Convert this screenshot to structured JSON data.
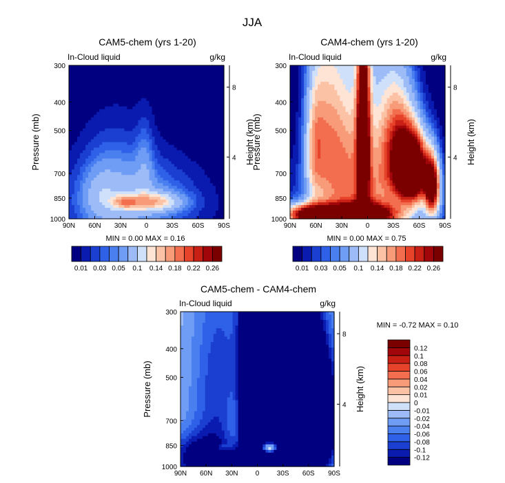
{
  "figure_title": "JJA",
  "chart_data": [
    {
      "type": "heatmap",
      "title": "CAM5-chem (yrs 1-20)",
      "left_label": "In-Cloud liquid",
      "units": "g/kg",
      "ylabel": "Pressure (mb)",
      "ylabel_right": "Height (km)",
      "x_ticks": [
        "90N",
        "60N",
        "30N",
        "0",
        "30S",
        "60S",
        "90S"
      ],
      "x_range": [
        90,
        -90
      ],
      "y_ticks": [
        "300",
        "400",
        "500",
        "700",
        "850",
        "1000"
      ],
      "y_tick_values": [
        300,
        400,
        500,
        700,
        850,
        1000
      ],
      "y_range": [
        300,
        1000
      ],
      "height_ticks": [
        "8",
        "4"
      ],
      "height_tick_pressures": [
        356,
        616
      ],
      "stats": {
        "min_label": "MIN =",
        "min_value": "0.00",
        "max_label": "MAX =",
        "max_value": "0.16"
      },
      "colorbar": {
        "orientation": "horizontal",
        "levels": [
          0.01,
          0.02,
          0.03,
          0.04,
          0.05,
          0.07,
          0.1,
          0.12,
          0.14,
          0.16,
          0.18,
          0.2,
          0.22,
          0.24,
          0.26
        ],
        "labels": [
          "0.01",
          "0.03",
          "0.05",
          "0.1",
          "0.14",
          "0.18",
          "0.22",
          "0.26"
        ],
        "colors": [
          "#000080",
          "#0a1bb0",
          "#1b3fd0",
          "#2e60e8",
          "#4a7ff0",
          "#6f9cf4",
          "#9dbcf7",
          "#cfe0fb",
          "#fde4d4",
          "#fbc2a5",
          "#f79b79",
          "#f26e4e",
          "#e6432a",
          "#c82014",
          "#a0060a",
          "#7a0000"
        ]
      },
      "field_description": "low-level liquid peak near equator/20S at 850 mb",
      "blobs": [
        {
          "lat": 12,
          "p": 880,
          "sx": 50,
          "sp": 180,
          "a": 0.06
        },
        {
          "lat": 38,
          "p": 800,
          "sx": 28,
          "sp": 220,
          "a": 0.04
        },
        {
          "lat": -10,
          "p": 875,
          "sx": 22,
          "sp": 45,
          "a": 0.1
        },
        {
          "lat": 25,
          "p": 878,
          "sx": 10,
          "sp": 30,
          "a": 0.08
        },
        {
          "lat": 2,
          "p": 640,
          "sx": 7,
          "sp": 140,
          "a": 0.03
        },
        {
          "lat": 55,
          "p": 820,
          "sx": 12,
          "sp": 120,
          "a": 0.025
        }
      ]
    },
    {
      "type": "heatmap",
      "title": "CAM4-chem (yrs 1-20)",
      "left_label": "In-Cloud liquid",
      "units": "g/kg",
      "ylabel": "Pressure (mb)",
      "ylabel_right": "Height (km)",
      "x_ticks": [
        "90N",
        "60N",
        "30N",
        "0",
        "30S",
        "60S",
        "90S"
      ],
      "x_range": [
        90,
        -90
      ],
      "y_ticks": [
        "300",
        "400",
        "500",
        "700",
        "850",
        "1000"
      ],
      "y_tick_values": [
        300,
        400,
        500,
        700,
        850,
        1000
      ],
      "y_range": [
        300,
        1000
      ],
      "height_ticks": [
        "8",
        "4"
      ],
      "height_tick_pressures": [
        356,
        616
      ],
      "stats": {
        "min_label": "MIN =",
        "min_value": "0.00",
        "max_label": "MAX =",
        "max_value": "0.75"
      },
      "colorbar": {
        "orientation": "horizontal",
        "levels": [
          0.01,
          0.02,
          0.03,
          0.04,
          0.05,
          0.07,
          0.1,
          0.12,
          0.14,
          0.16,
          0.18,
          0.2,
          0.22,
          0.24,
          0.26
        ],
        "labels": [
          "0.01",
          "0.03",
          "0.05",
          "0.1",
          "0.14",
          "0.18",
          "0.22",
          "0.26"
        ],
        "colors": [
          "#000080",
          "#0a1bb0",
          "#1b3fd0",
          "#2e60e8",
          "#4a7ff0",
          "#6f9cf4",
          "#9dbcf7",
          "#cfe0fb",
          "#fde4d4",
          "#fbc2a5",
          "#f79b79",
          "#f26e4e",
          "#e6432a",
          "#c82014",
          "#a0060a",
          "#7a0000"
        ]
      },
      "field_description": "deep tropical column near 5N, southern-hemisphere low cloud maximum, boundary-layer band",
      "blobs": [
        {
          "lat": 5,
          "p": 520,
          "sx": 5,
          "sp": 260,
          "a": 0.3
        },
        {
          "lat": 0,
          "p": 650,
          "sx": 22,
          "sp": 500,
          "a": 0.1
        },
        {
          "lat": -52,
          "p": 680,
          "sx": 12,
          "sp": 120,
          "a": 0.4
        },
        {
          "lat": -35,
          "p": 560,
          "sx": 14,
          "sp": 180,
          "a": 0.18
        },
        {
          "lat": 48,
          "p": 520,
          "sx": 13,
          "sp": 300,
          "a": 0.12
        },
        {
          "lat": 28,
          "p": 600,
          "sx": 14,
          "sp": 260,
          "a": 0.08
        },
        {
          "lat": 62,
          "p": 560,
          "sx": 8,
          "sp": 200,
          "a": 0.1
        },
        {
          "lat": 15,
          "p": 970,
          "sx": 30,
          "sp": 55,
          "a": 0.32
        },
        {
          "lat": 70,
          "p": 970,
          "sx": 18,
          "sp": 55,
          "a": 0.25
        },
        {
          "lat": -5,
          "p": 900,
          "sx": 55,
          "sp": 220,
          "a": 0.08
        },
        {
          "lat": -75,
          "p": 780,
          "sx": 6,
          "sp": 120,
          "a": 0.28
        }
      ]
    },
    {
      "type": "heatmap",
      "title": "CAM5-chem - CAM4-chem",
      "left_label": "In-Cloud liquid",
      "units": "g/kg",
      "ylabel": "Pressure (mb)",
      "ylabel_right": "Height (km)",
      "x_ticks": [
        "90N",
        "60N",
        "30N",
        "0",
        "30S",
        "60S",
        "90S"
      ],
      "x_range": [
        90,
        -90
      ],
      "y_ticks": [
        "300",
        "400",
        "500",
        "700",
        "850",
        "1000"
      ],
      "y_tick_values": [
        300,
        400,
        500,
        700,
        850,
        1000
      ],
      "y_range": [
        300,
        1000
      ],
      "height_ticks": [
        "8",
        "4"
      ],
      "height_tick_pressures": [
        356,
        616
      ],
      "stats": {
        "min_label": "MIN =",
        "min_value": "-0.72",
        "max_label": "MAX =",
        "max_value": "0.10"
      },
      "colorbar": {
        "orientation": "vertical",
        "levels": [
          -0.12,
          -0.1,
          -0.08,
          -0.06,
          -0.04,
          -0.02,
          -0.01,
          0,
          0.01,
          0.02,
          0.04,
          0.06,
          0.08,
          0.1,
          0.12
        ],
        "labels": [
          "-0.12",
          "-0.1",
          "-0.08",
          "-0.06",
          "-0.04",
          "-0.02",
          "-0.01",
          "0",
          "0.01",
          "0.02",
          "0.04",
          "0.06",
          "0.08",
          "0.1",
          "0.12"
        ],
        "colors": [
          "#000080",
          "#0a1bb0",
          "#1b3fd0",
          "#2e60e8",
          "#4a7ff0",
          "#6f9cf4",
          "#9dbcf7",
          "#cfe0fb",
          "#fde4d4",
          "#fbc2a5",
          "#f79b79",
          "#f26e4e",
          "#e6432a",
          "#c82014",
          "#a0060a",
          "#7a0000"
        ]
      },
      "field_description": "mostly negative (CAM5 less liquid), positive peak near 15S 850 mb",
      "base": -0.006,
      "blobs": [
        {
          "lat": 5,
          "p": 560,
          "sx": 10,
          "sp": 400,
          "a": -0.3
        },
        {
          "lat": -45,
          "p": 700,
          "sx": 28,
          "sp": 250,
          "a": -0.35
        },
        {
          "lat": -55,
          "p": 660,
          "sx": 16,
          "sp": 200,
          "a": -0.5
        },
        {
          "lat": 45,
          "p": 560,
          "sx": 24,
          "sp": 340,
          "a": -0.09
        },
        {
          "lat": 70,
          "p": 930,
          "sx": 28,
          "sp": 120,
          "a": -0.12
        },
        {
          "lat": 20,
          "p": 975,
          "sx": 25,
          "sp": 55,
          "a": -0.2
        },
        {
          "lat": -20,
          "p": 320,
          "sx": 8,
          "sp": 150,
          "a": -0.04
        },
        {
          "lat": 25,
          "p": 700,
          "sx": 9,
          "sp": 150,
          "a": 0.04
        },
        {
          "lat": -15,
          "p": 862,
          "sx": 10,
          "sp": 28,
          "a": 0.22
        },
        {
          "lat": 40,
          "p": 860,
          "sx": 6,
          "sp": 15,
          "a": 0.05
        }
      ]
    }
  ]
}
